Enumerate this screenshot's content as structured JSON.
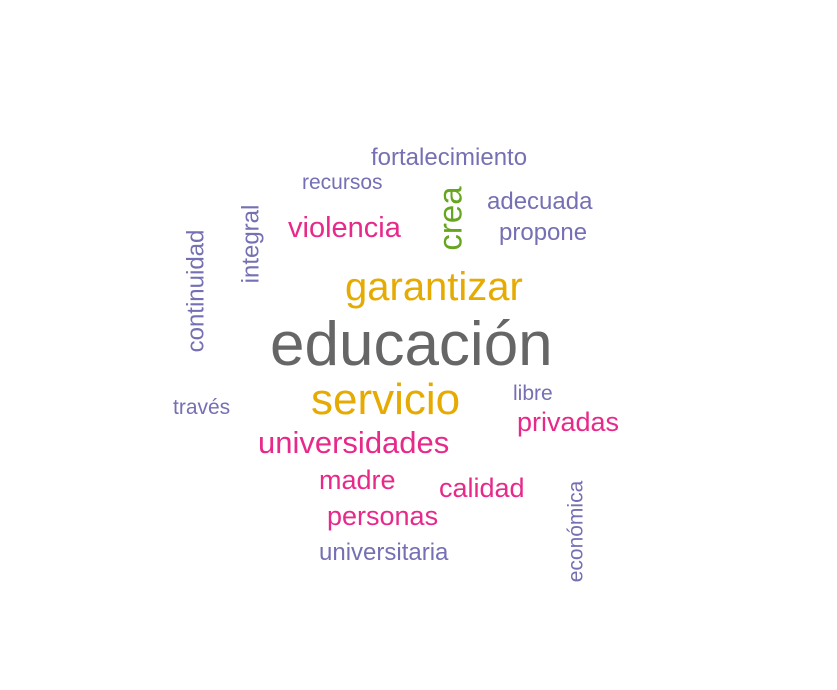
{
  "colors": {
    "purple": "#7570b3",
    "magenta": "#e7298a",
    "gold": "#e6ab02",
    "green": "#66a61e",
    "gray": "#666666"
  },
  "words": [
    {
      "id": "educacion",
      "text": "educación",
      "color": "gray"
    },
    {
      "id": "garantizar",
      "text": "garantizar",
      "color": "gold"
    },
    {
      "id": "servicio",
      "text": "servicio",
      "color": "gold"
    },
    {
      "id": "crea",
      "text": "crea",
      "color": "green"
    },
    {
      "id": "violencia",
      "text": "violencia",
      "color": "magenta"
    },
    {
      "id": "universidades",
      "text": "universidades",
      "color": "magenta"
    },
    {
      "id": "privadas",
      "text": "privadas",
      "color": "magenta"
    },
    {
      "id": "madre",
      "text": "madre",
      "color": "magenta"
    },
    {
      "id": "calidad",
      "text": "calidad",
      "color": "magenta"
    },
    {
      "id": "personas",
      "text": "personas",
      "color": "magenta"
    },
    {
      "id": "fortalecimiento",
      "text": "fortalecimiento",
      "color": "purple"
    },
    {
      "id": "recursos",
      "text": "recursos",
      "color": "purple"
    },
    {
      "id": "adecuada",
      "text": "adecuada",
      "color": "purple"
    },
    {
      "id": "propone",
      "text": "propone",
      "color": "purple"
    },
    {
      "id": "integral",
      "text": "integral",
      "color": "purple"
    },
    {
      "id": "continuidad",
      "text": "continuidad",
      "color": "purple"
    },
    {
      "id": "traves",
      "text": "través",
      "color": "purple"
    },
    {
      "id": "libre",
      "text": "libre",
      "color": "purple"
    },
    {
      "id": "universitaria",
      "text": "universitaria",
      "color": "purple"
    },
    {
      "id": "economica",
      "text": "económica",
      "color": "purple"
    }
  ]
}
